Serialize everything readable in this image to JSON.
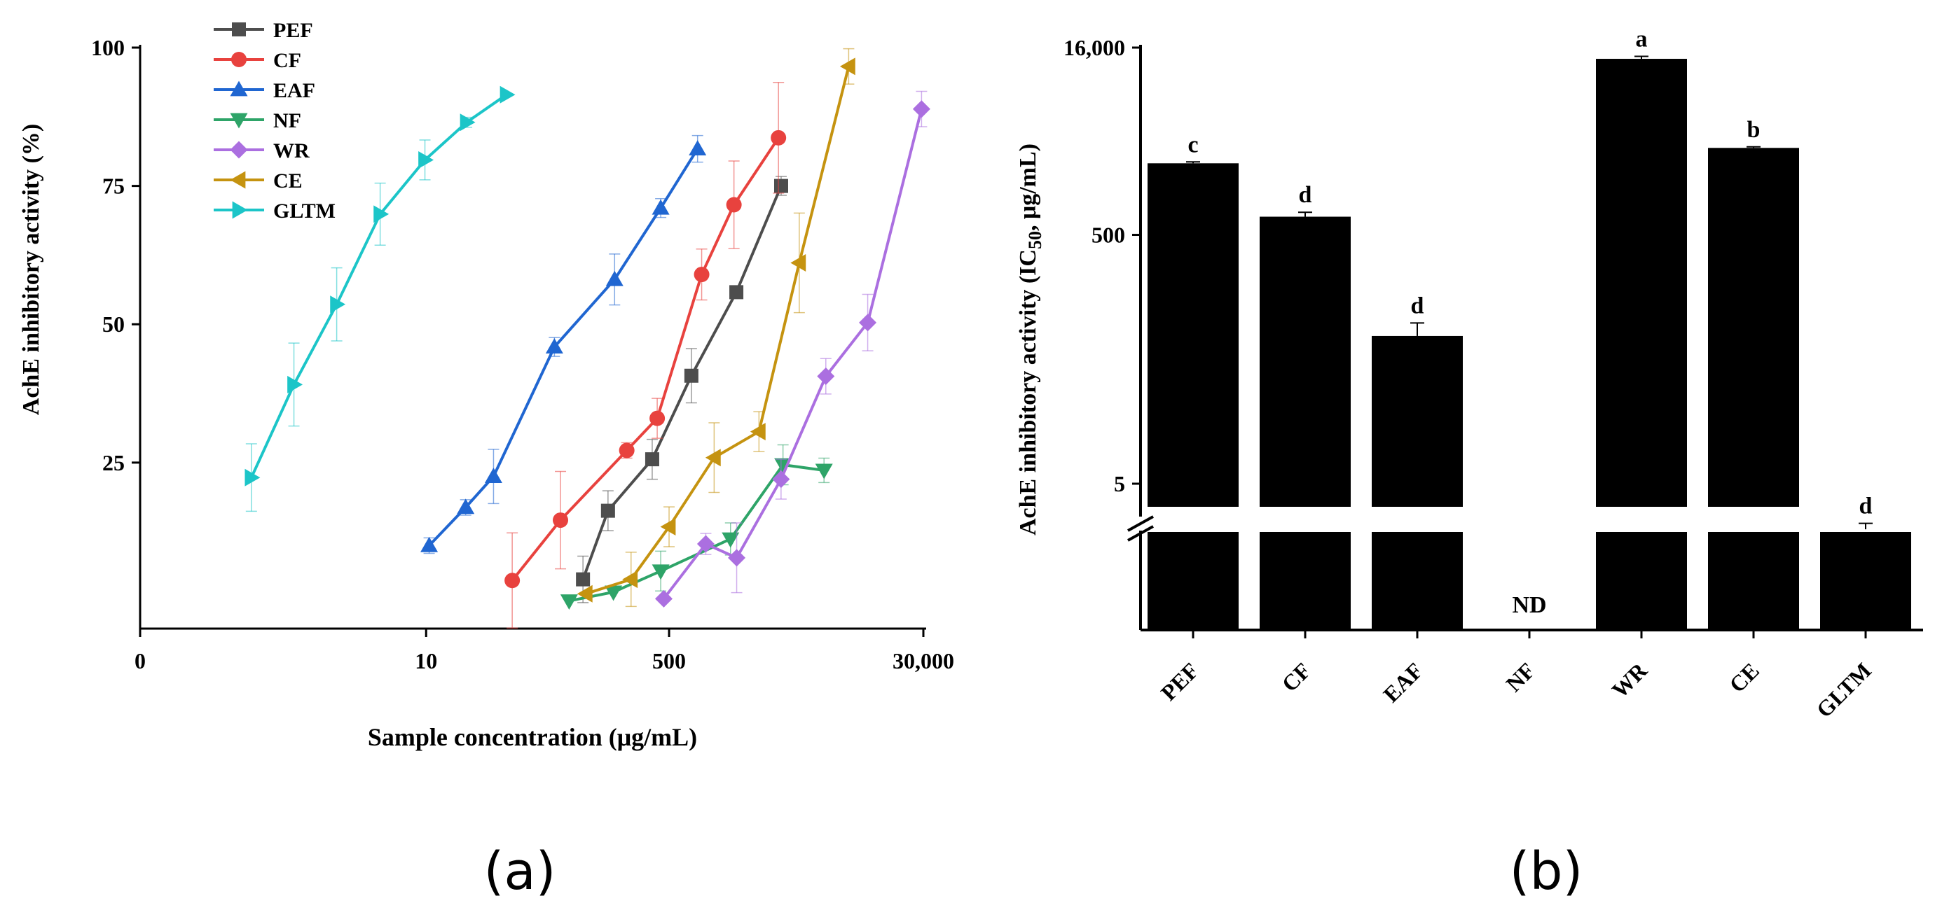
{
  "panels": {
    "a_label": "(a)",
    "b_label": "(b)"
  },
  "chart_data": [
    {
      "type": "line",
      "panel": "a",
      "xlabel": "Sample concentration (μg/mL)",
      "ylabel": "AchE inhibitory activity (%)",
      "xscale": "log",
      "xlim": [
        0.08,
        30000
      ],
      "ylim": [
        -5,
        100
      ],
      "xtick_labels": [
        "0",
        "10",
        "500",
        "30,000"
      ],
      "xtick_values": [
        0.1,
        10,
        500,
        30000
      ],
      "ytick_labels": [
        "25",
        "50",
        "75",
        "100"
      ],
      "ytick_values": [
        25,
        50,
        75,
        100
      ],
      "legend_position": "top-left",
      "series": [
        {
          "name": "PEF",
          "color": "#4d4d4d",
          "marker": "square",
          "x": [
            125,
            187,
            381,
            716,
            1477,
            3038
          ],
          "y": [
            3.9,
            16.3,
            25.6,
            40.7,
            55.8,
            75.0
          ],
          "err": [
            4.2,
            3.6,
            3.6,
            4.9,
            0,
            1.7
          ]
        },
        {
          "name": "CF",
          "color": "#e8423e",
          "marker": "circle",
          "x": [
            40,
            87,
            253,
            413,
            845,
            1421,
            2910
          ],
          "y": [
            3.7,
            14.6,
            27.2,
            33.0,
            59.0,
            71.6,
            83.7
          ],
          "err": [
            8.6,
            8.8,
            1.4,
            3.6,
            4.6,
            7.9,
            10
          ]
        },
        {
          "name": "EAF",
          "color": "#2066d1",
          "marker": "triangle-up",
          "x": [
            10.5,
            18.9,
            29.6,
            78.9,
            208,
            437,
            791
          ],
          "y": [
            10.0,
            16.9,
            22.5,
            45.9,
            58.1,
            71.0,
            81.7
          ],
          "err": [
            1.4,
            1.4,
            4.9,
            1.7,
            4.6,
            1.7,
            2.4
          ]
        },
        {
          "name": "NF",
          "color": "#2ea468",
          "marker": "triangle-down",
          "x": [
            100,
            204,
            437,
            1345,
            3130,
            6060
          ],
          "y": [
            0,
            1.6,
            5.4,
            11.2,
            24.6,
            23.6
          ],
          "err": [
            0,
            0,
            3.6,
            2.9,
            3.6,
            2.2
          ]
        },
        {
          "name": "WR",
          "color": "#ab6fe0",
          "marker": "diamond",
          "x": [
            459,
            903,
            1485,
            3033,
            6238,
            12244,
            29134
          ],
          "y": [
            0.4,
            10.3,
            7.8,
            22.0,
            40.6,
            50.3,
            88.9
          ],
          "err": [
            0,
            1.9,
            6.3,
            3.6,
            3.2,
            5.1,
            3.2
          ]
        },
        {
          "name": "CE",
          "color": "#c59310",
          "marker": "triangle-left",
          "x": [
            131,
            271,
            500,
            1033,
            2126,
            4067,
            9013
          ],
          "y": [
            1.3,
            3.9,
            13.4,
            25.9,
            30.6,
            61.1,
            96.6
          ],
          "err": [
            0,
            4.9,
            3.6,
            6.3,
            3.6,
            9.0,
            3.2
          ]
        },
        {
          "name": "GLTM",
          "color": "#1cc5c8",
          "marker": "triangle-right",
          "x": [
            0.6,
            1.19,
            2.37,
            4.77,
            9.81,
            19.2,
            36.5
          ],
          "y": [
            22.3,
            39.1,
            53.6,
            69.9,
            79.7,
            86.5,
            91.5
          ],
          "err": [
            6.1,
            7.5,
            6.6,
            5.6,
            3.6,
            0.9,
            0
          ]
        }
      ]
    },
    {
      "type": "bar",
      "panel": "b",
      "ylabel": "AchE inhibitory activity (IC50, μg/mL)",
      "ylabel_parts": {
        "pre": "AchE inhibitory activity (IC",
        "sub": "50",
        "post": ", μg/mL)"
      },
      "yscale": "log",
      "axis_break": true,
      "ytick_labels": [
        "5",
        "500",
        "16,000"
      ],
      "ytick_values": [
        5,
        500,
        16000
      ],
      "categories": [
        "PEF",
        "CF",
        "EAF",
        "NF",
        "WR",
        "CE",
        "GLTM"
      ],
      "values": [
        1880,
        700,
        77,
        null,
        13000,
        2500,
        2.15
      ],
      "err_upper": [
        1930,
        760,
        98,
        null,
        13600,
        2550,
        2.4
      ],
      "letters": [
        "c",
        "d",
        "d",
        "ND",
        "a",
        "b",
        "d"
      ],
      "bar_color": "#000000"
    }
  ]
}
